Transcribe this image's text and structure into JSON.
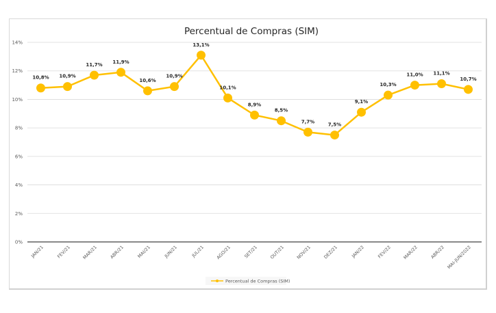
{
  "chart_data": {
    "type": "line",
    "title": "Percentual de Compras (SIM)",
    "xlabel": "",
    "ylabel": "",
    "categories": [
      "JAN/21",
      "FEV/21",
      "MAR/21",
      "ABR/21",
      "MAI/21",
      "JUN/21",
      "JUL/21",
      "AGO/21",
      "SET/21",
      "OUT/21",
      "NOV/21",
      "DEZ/21",
      "JAN/22",
      "FEV/22",
      "MAR/22",
      "ABR/22",
      "MAI-JUN/2022"
    ],
    "series": [
      {
        "name": "Percentual de Compras (SIM)",
        "values": [
          10.8,
          10.9,
          11.7,
          11.9,
          10.6,
          10.9,
          13.1,
          10.1,
          8.9,
          8.5,
          7.7,
          7.5,
          9.1,
          10.3,
          11.0,
          11.1,
          10.7
        ],
        "labels": [
          "10,8%",
          "10,9%",
          "11,7%",
          "11,9%",
          "10,6%",
          "10,9%",
          "13,1%",
          "10,1%",
          "8,9%",
          "8,5%",
          "7,7%",
          "7,5%",
          "9,1%",
          "10,3%",
          "11,0%",
          "11,1%",
          "10,7%"
        ],
        "color": "#FFC000"
      }
    ],
    "ylim": [
      0,
      14
    ],
    "yticks": [
      0,
      2,
      4,
      6,
      8,
      10,
      12,
      14
    ],
    "ytick_labels": [
      "0%",
      "2%",
      "4%",
      "6%",
      "8%",
      "10%",
      "12%",
      "14%"
    ],
    "grid": true,
    "legend": "bottom-center"
  }
}
